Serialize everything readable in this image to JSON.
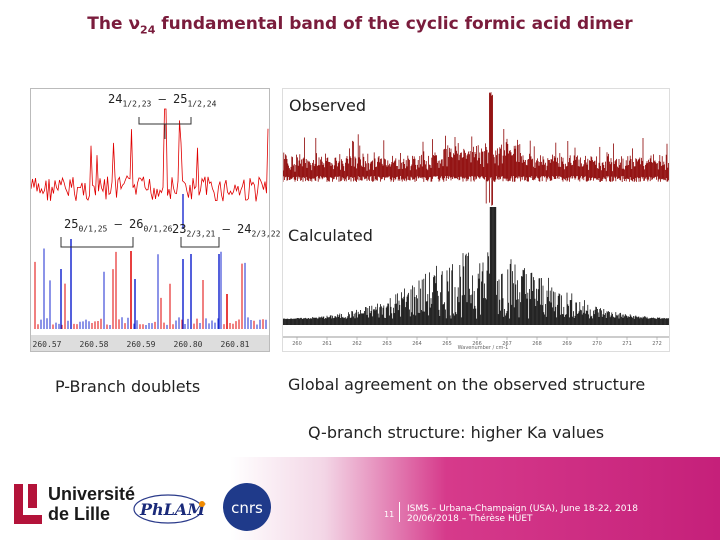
{
  "title": {
    "prefix": "The ",
    "nu": "ν",
    "sub": "24",
    "suffix": " fundamental band of the cyclic formic acid dimer"
  },
  "left_panel": {
    "trans1": {
      "main": "24",
      "sub1": "1/2,23",
      "mid": " – 25",
      "sub2": "1/2,24"
    },
    "trans2": {
      "main": "25",
      "sub1": "0/1,25",
      "mid": " – 26",
      "sub2": "0/1,26"
    },
    "trans3": {
      "main": "23",
      "sub1": "2/3,21",
      "mid": " – 24",
      "sub2": "2/3,22"
    },
    "axis_ticks": [
      "260.57",
      "260.58",
      "260.59",
      "260.80",
      "260.81"
    ],
    "caption": "P-Branch doublets"
  },
  "right_panel": {
    "observed_label": "Observed",
    "calculated_label": "Calculated",
    "axis_ticks": [
      "260",
      "261",
      "262",
      "263",
      "264",
      "265",
      "266",
      "267",
      "268",
      "269",
      "270",
      "271",
      "272"
    ],
    "axis_title": "Wavenumber / cm-1",
    "caption": "Global agreement on the observed structure"
  },
  "q_branch_note": "Q-branch structure: higher Ka values",
  "footer": {
    "university_line1": "Université",
    "university_line2": "de Lille",
    "phlam_logo": "PhLAM",
    "cnrs_logo": "cnrs",
    "page_number": "11",
    "conference": "ISMS – Urbana-Champaign (USA), June 18-22, 2018",
    "date_author": "20/06/2018 – Thérèse HUET"
  },
  "colors": {
    "title": "#7a1c3c",
    "observed": "#8b0000",
    "calculated": "#111111",
    "pbranch_red": "#e00000",
    "pbranch_blue": "#1a2ad0",
    "footer_magenta": "#c5207a"
  }
}
